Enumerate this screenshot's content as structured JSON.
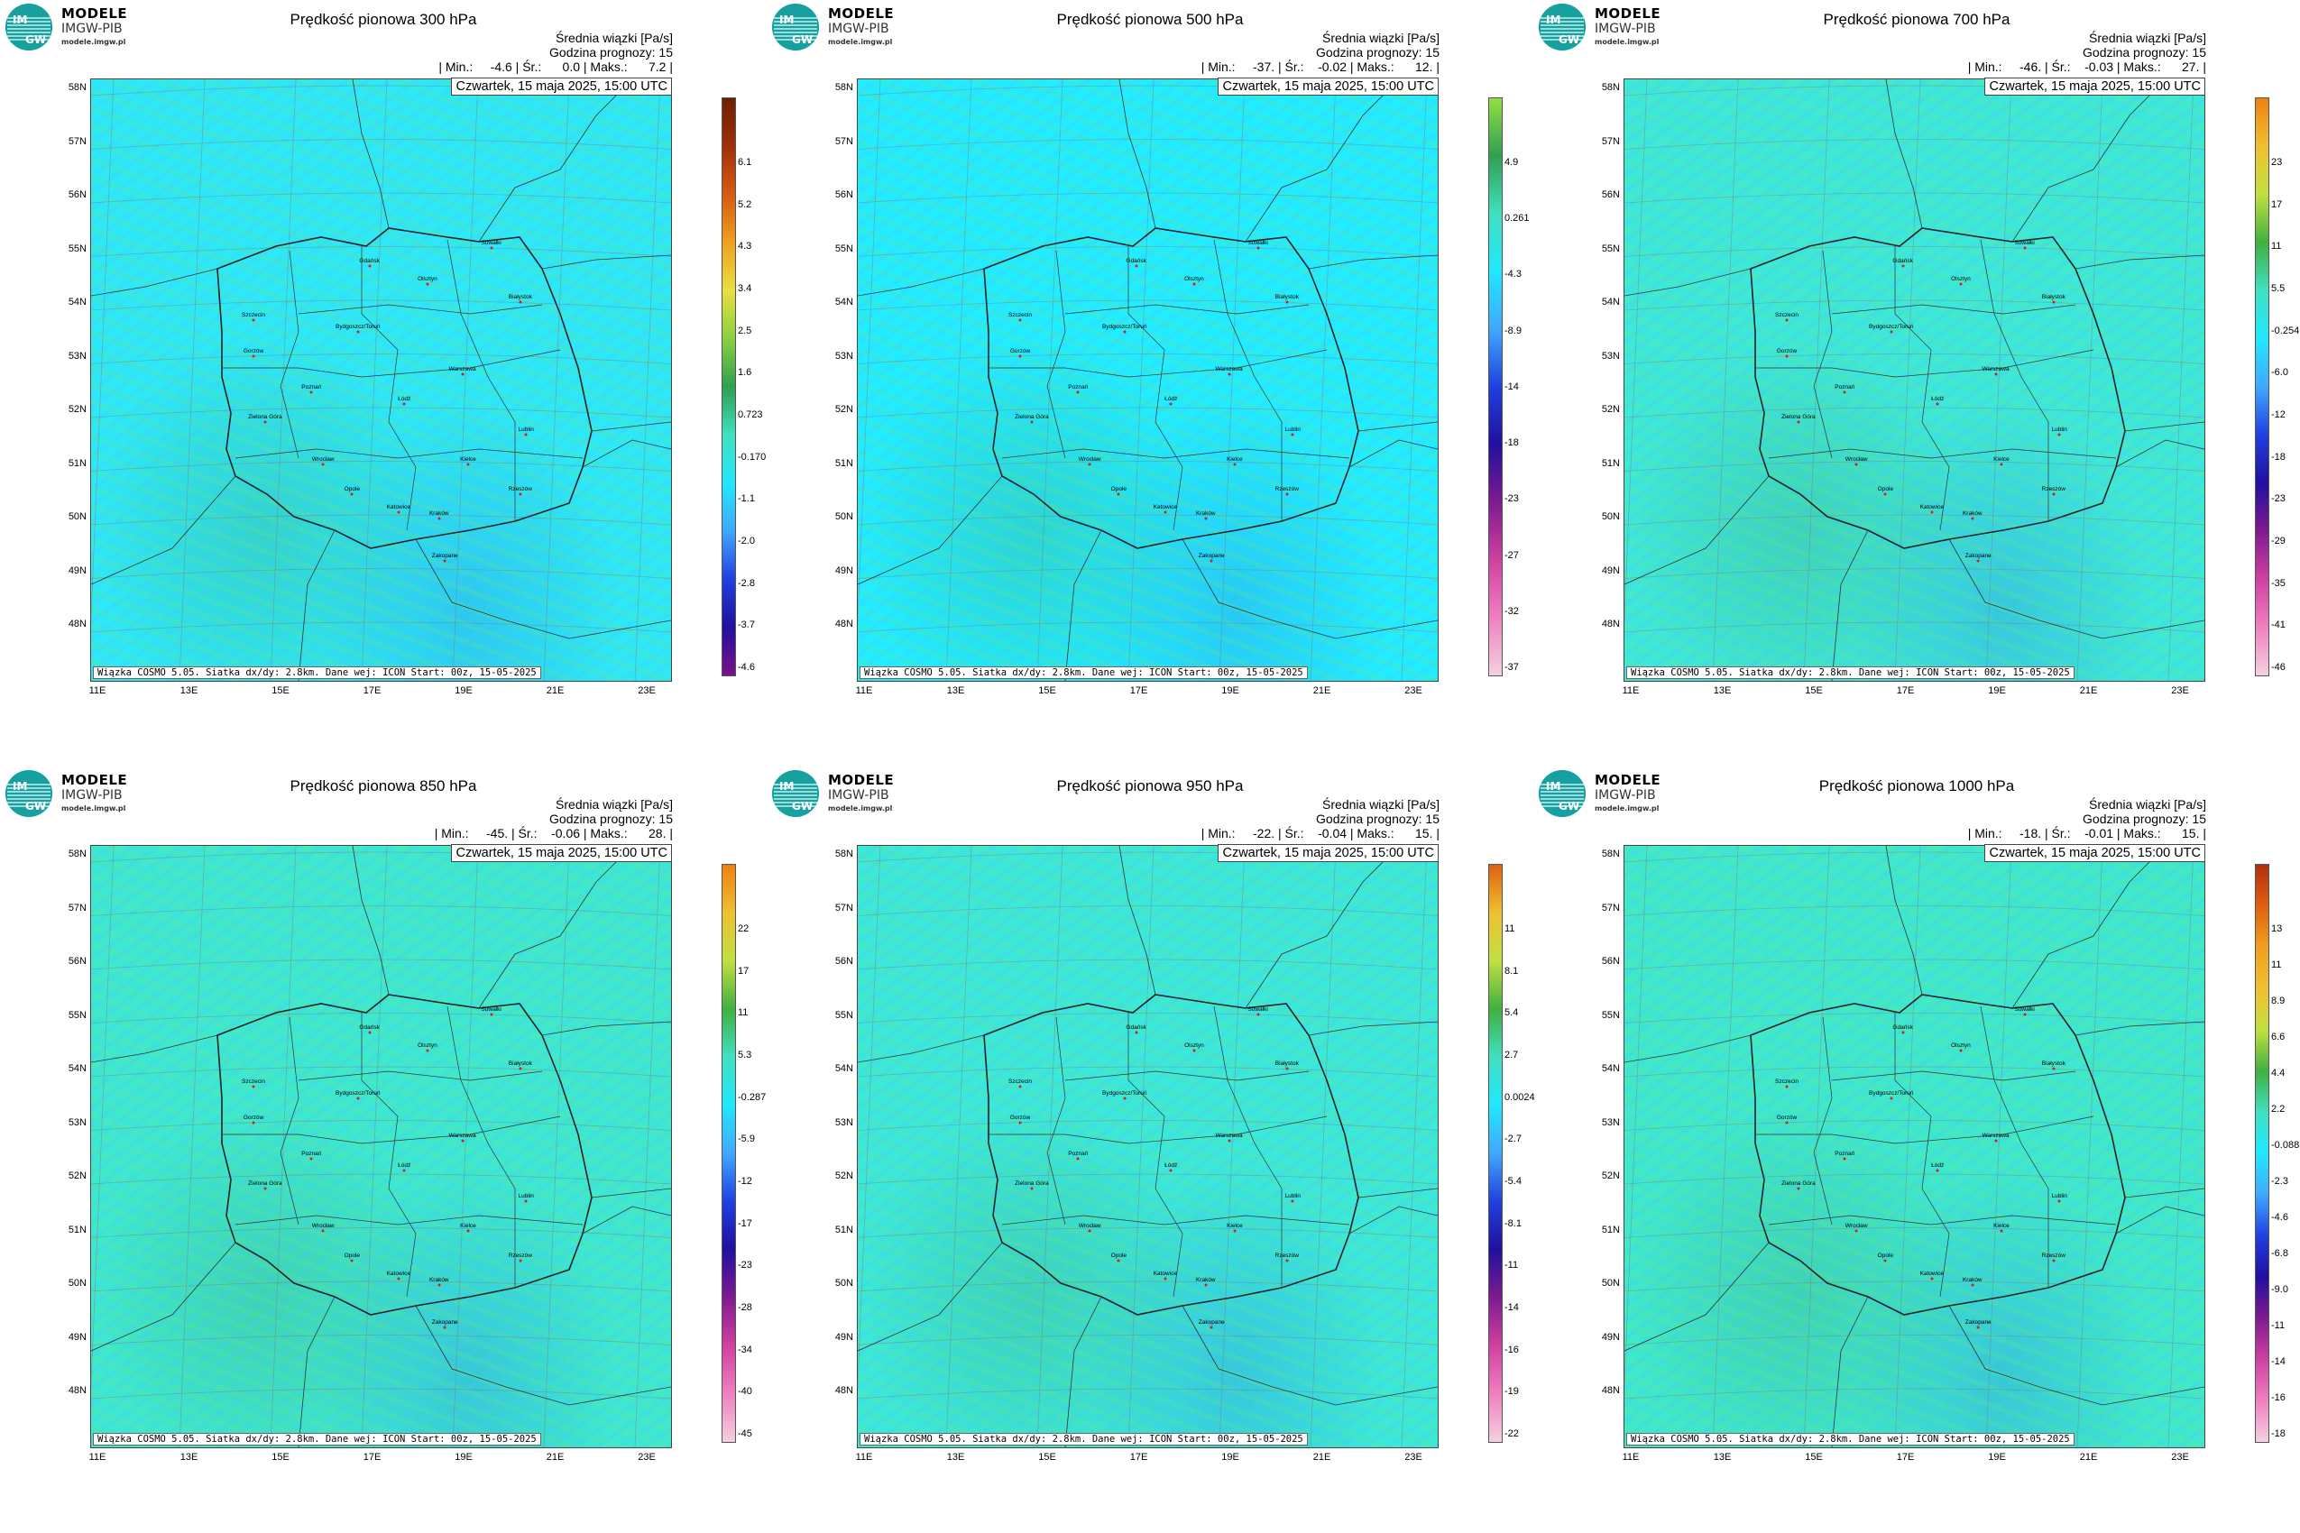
{
  "logo": {
    "main": "MODELE",
    "sub": "IMGW-PIB",
    "url": "modele.imgw.pl"
  },
  "common": {
    "units_line": "Średnia wiązki [Pa/s]",
    "forecast_line": "Godzina prognozy: 15",
    "date": "Czwartek, 15 maja 2025, 15:00 UTC",
    "footer": "Wiązka COSMO 5.05. Siatka dx/dy: 2.8km. Dane wej: ICON Start: 00z, 15-05-2025",
    "lat_labels": [
      "58N",
      "57N",
      "56N",
      "55N",
      "54N",
      "53N",
      "52N",
      "51N",
      "50N",
      "49N",
      "48N"
    ],
    "lon_labels": [
      "11E",
      "13E",
      "15E",
      "17E",
      "19E",
      "21E",
      "23E"
    ],
    "cities": [
      "Gdańsk",
      "Suwałki",
      "Olsztyn",
      "Białystok",
      "Szczecin",
      "Bydgoszcz/Toruń",
      "Gorzów",
      "Warszawa",
      "Poznań",
      "Łódź",
      "Zielona Góra",
      "Lublin",
      "Wrocław",
      "Kielce",
      "Opole",
      "Rzeszów",
      "Katowice",
      "Kraków",
      "Zakopane"
    ]
  },
  "panels": [
    {
      "title": "Prędkość pionowa 300 hPa",
      "stats": "| Min.:     -4.6 | Śr.:      0.0 | Maks.:      7.2 |",
      "cbar_ticks": [
        "6.1",
        "5.2",
        "4.3",
        "3.4",
        "2.5",
        "1.6",
        "0.723",
        "-0.170",
        "-1.1",
        "-2.0",
        "-2.8",
        "-3.7",
        "-4.6"
      ],
      "cbar_colors": [
        "#6b1f00",
        "#a0300a",
        "#d65a10",
        "#f0a020",
        "#e8e040",
        "#8ad040",
        "#2fa050",
        "#40e0c0",
        "#20e8ff",
        "#40a8ff",
        "#2040e0",
        "#2010a0",
        "#7a108a"
      ]
    },
    {
      "title": "Prędkość pionowa 500 hPa",
      "stats": "| Min.:     -37. | Śr.:    -0.02 | Maks.:      12. |",
      "cbar_ticks": [
        "4.9",
        "0.261",
        "-4.3",
        "-8.9",
        "-14",
        "-18",
        "-23",
        "-27",
        "-32",
        "-37"
      ],
      "cbar_colors": [
        "#90e040",
        "#30a050",
        "#40e0c0",
        "#20e8ff",
        "#40a8ff",
        "#2040e0",
        "#2010a0",
        "#801a90",
        "#d040a0",
        "#f080c0",
        "#f4d0e0"
      ]
    },
    {
      "title": "Prędkość pionowa 700 hPa",
      "stats": "| Min.:     -46. | Śr.:    -0.03 | Maks.:      27. |",
      "cbar_ticks": [
        "23",
        "17",
        "11",
        "5.5",
        "-0.254",
        "-6.0",
        "-12",
        "-18",
        "-23",
        "-29",
        "-35",
        "-41",
        "-46"
      ],
      "cbar_colors": [
        "#f08010",
        "#f0c030",
        "#c0e040",
        "#40b040",
        "#40e0c0",
        "#20e8ff",
        "#40a8ff",
        "#2040e0",
        "#2010a0",
        "#801a90",
        "#d040a0",
        "#f080c0",
        "#f4d0e0"
      ]
    },
    {
      "title": "Prędkość pionowa 850 hPa",
      "stats": "| Min.:     -45. | Śr.:    -0.06 | Maks.:      28. |",
      "cbar_ticks": [
        "22",
        "17",
        "11",
        "5.3",
        "-0.287",
        "-5.9",
        "-12",
        "-17",
        "-23",
        "-28",
        "-34",
        "-40",
        "-45"
      ],
      "cbar_colors": [
        "#f08010",
        "#f0c030",
        "#c0e040",
        "#40b040",
        "#40e0c0",
        "#20e8ff",
        "#40a8ff",
        "#2040e0",
        "#2010a0",
        "#801a90",
        "#d040a0",
        "#f080c0",
        "#f4d0e0"
      ]
    },
    {
      "title": "Prędkość pionowa 950 hPa",
      "stats": "| Min.:     -22. | Śr.:    -0.04 | Maks.:      15. |",
      "cbar_ticks": [
        "11",
        "8.1",
        "5.4",
        "2.7",
        "0.0024",
        "-2.7",
        "-5.4",
        "-8.1",
        "-11",
        "-14",
        "-16",
        "-19",
        "-22"
      ],
      "cbar_colors": [
        "#e06010",
        "#f0c030",
        "#c0e040",
        "#40b040",
        "#40e0c0",
        "#20e8ff",
        "#40a8ff",
        "#2040e0",
        "#2010a0",
        "#801a90",
        "#d040a0",
        "#f080c0",
        "#f4d0e0"
      ]
    },
    {
      "title": "Prędkość pionowa 1000 hPa",
      "stats": "| Min.:     -18. | Śr.:    -0.01 | Maks.:      15. |",
      "cbar_ticks": [
        "13",
        "11",
        "8.9",
        "6.6",
        "4.4",
        "2.2",
        "-0.088",
        "-2.3",
        "-4.6",
        "-6.8",
        "-9.0",
        "-11",
        "-14",
        "-16",
        "-18"
      ],
      "cbar_colors": [
        "#b03010",
        "#e06010",
        "#f0a020",
        "#f0c030",
        "#c0e040",
        "#40b040",
        "#40e0c0",
        "#20e8ff",
        "#40a8ff",
        "#2040e0",
        "#2010a0",
        "#801a90",
        "#d040a0",
        "#f080c0",
        "#f4d0e0"
      ]
    }
  ]
}
